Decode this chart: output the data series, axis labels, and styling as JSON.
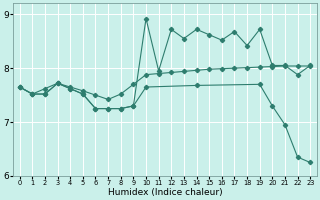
{
  "xlabel": "Humidex (Indice chaleur)",
  "background_color": "#caf0ea",
  "line_color": "#2e7d6e",
  "xlim": [
    -0.5,
    23.5
  ],
  "ylim": [
    6.0,
    9.2
  ],
  "yticks": [
    6,
    7,
    8,
    9
  ],
  "xticks": [
    0,
    1,
    2,
    3,
    4,
    5,
    6,
    7,
    8,
    9,
    10,
    11,
    12,
    13,
    14,
    15,
    16,
    17,
    18,
    19,
    20,
    21,
    22,
    23
  ],
  "series1_x": [
    0,
    1,
    2,
    3,
    4,
    5,
    6,
    7,
    8,
    9,
    10,
    11,
    12,
    13,
    14,
    15,
    16,
    17,
    18,
    19,
    20,
    21,
    22,
    23
  ],
  "series1_y": [
    7.65,
    7.52,
    7.52,
    7.72,
    7.62,
    7.52,
    7.25,
    7.25,
    7.25,
    7.3,
    8.92,
    7.95,
    8.72,
    8.55,
    8.72,
    8.62,
    8.52,
    8.68,
    8.42,
    8.72,
    8.05,
    8.05,
    7.88,
    8.05
  ],
  "series2_x": [
    0,
    1,
    2,
    3,
    4,
    5,
    6,
    7,
    8,
    9,
    10,
    11,
    12,
    13,
    14,
    15,
    16,
    17,
    18,
    19,
    20,
    21,
    22,
    23
  ],
  "series2_y": [
    7.65,
    7.52,
    7.62,
    7.72,
    7.65,
    7.58,
    7.5,
    7.42,
    7.52,
    7.7,
    7.88,
    7.9,
    7.92,
    7.94,
    7.96,
    7.98,
    7.99,
    8.0,
    8.01,
    8.02,
    8.03,
    8.04,
    8.04,
    8.04
  ],
  "series3_x": [
    0,
    1,
    2,
    3,
    4,
    5,
    6,
    7,
    8,
    9,
    10,
    14,
    19,
    20,
    21,
    22,
    23
  ],
  "series3_y": [
    7.65,
    7.52,
    7.52,
    7.72,
    7.62,
    7.52,
    7.25,
    7.25,
    7.25,
    7.3,
    7.65,
    7.68,
    7.7,
    7.3,
    6.95,
    6.35,
    6.25
  ]
}
